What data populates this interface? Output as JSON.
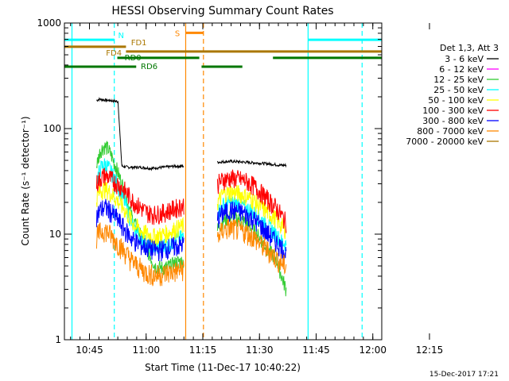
{
  "chart_data": {
    "type": "line",
    "title": "HESSI Observing Summary Count Rates",
    "xlabel": "Start Time (11-Dec-17 10:40:22)",
    "ylabel": "Count Rate (s⁻¹ detector⁻¹)",
    "yscale": "log",
    "ylim": [
      1,
      1000
    ],
    "xlim_minutes": [
      -2,
      82
    ],
    "x_ticks": [
      {
        "t": 4.63,
        "label": "10:45"
      },
      {
        "t": 19.63,
        "label": "11:00"
      },
      {
        "t": 34.63,
        "label": "11:15"
      },
      {
        "t": 49.63,
        "label": "11:30"
      },
      {
        "t": 64.63,
        "label": "11:45"
      },
      {
        "t": 79.63,
        "label": "12:00"
      },
      {
        "t": 94.63,
        "label": "12:15"
      }
    ],
    "y_ticks": [
      {
        "v": 1,
        "label": "1"
      },
      {
        "v": 10,
        "label": "10"
      },
      {
        "v": 100,
        "label": "100"
      },
      {
        "v": 1000,
        "label": "1000"
      }
    ],
    "legend_title": "Det 1,3, Att 3",
    "legend_placement": "right",
    "series": [
      {
        "name": "3 - 6 keV",
        "color": "#000000",
        "seg1": [
          [
            6.5,
            185
          ],
          [
            7.2,
            190
          ],
          [
            8,
            188
          ],
          [
            9,
            186
          ],
          [
            10,
            185
          ],
          [
            11,
            183
          ],
          [
            12.2,
            180
          ],
          [
            13.2,
            44
          ],
          [
            15,
            43
          ],
          [
            18,
            43
          ],
          [
            21,
            42
          ],
          [
            24,
            43
          ],
          [
            27,
            44
          ],
          [
            29.6,
            44
          ]
        ],
        "seg2": [
          [
            38.5,
            48
          ],
          [
            42,
            49
          ],
          [
            46,
            48
          ],
          [
            50,
            47
          ],
          [
            53,
            46
          ],
          [
            55,
            45
          ],
          [
            56.7,
            45
          ]
        ]
      },
      {
        "name": "6 - 12 keV",
        "color": "#ff00ff",
        "seg1": [],
        "seg2": []
      },
      {
        "name": "12 - 25 keV",
        "color": "#33cc33",
        "seg1": [
          [
            6.5,
            45
          ],
          [
            7.5,
            62
          ],
          [
            8.5,
            68
          ],
          [
            9.5,
            65
          ],
          [
            10.5,
            55
          ],
          [
            12,
            40
          ],
          [
            14,
            25
          ],
          [
            16,
            14
          ],
          [
            18,
            10
          ],
          [
            20,
            7
          ],
          [
            22,
            5
          ],
          [
            24,
            4.8
          ],
          [
            26,
            5
          ],
          [
            28,
            5.5
          ],
          [
            29.6,
            5.5
          ]
        ],
        "seg2": [
          [
            38.5,
            11
          ],
          [
            40,
            13.5
          ],
          [
            42,
            14.5
          ],
          [
            44,
            14
          ],
          [
            46,
            13
          ],
          [
            48,
            11
          ],
          [
            50,
            9
          ],
          [
            52,
            7
          ],
          [
            54,
            6
          ],
          [
            55.5,
            4
          ],
          [
            56.7,
            3
          ]
        ]
      },
      {
        "name": "25 - 50 keV",
        "color": "#00ffff",
        "seg1": [
          [
            6.5,
            32
          ],
          [
            7.5,
            42
          ],
          [
            8.5,
            46
          ],
          [
            9.5,
            44
          ],
          [
            10.5,
            38
          ],
          [
            12,
            30
          ],
          [
            14,
            20
          ],
          [
            16,
            12
          ],
          [
            18,
            9.5
          ],
          [
            20,
            8
          ],
          [
            22,
            7.5
          ],
          [
            24,
            7.8
          ],
          [
            26,
            8.2
          ],
          [
            28,
            9
          ],
          [
            29.6,
            9.5
          ]
        ],
        "seg2": [
          [
            38.5,
            16
          ],
          [
            40,
            19
          ],
          [
            42,
            20
          ],
          [
            44,
            19.5
          ],
          [
            46,
            18
          ],
          [
            48,
            16
          ],
          [
            50,
            14
          ],
          [
            52,
            12
          ],
          [
            54,
            10
          ],
          [
            55.5,
            8.5
          ],
          [
            56.7,
            8
          ]
        ]
      },
      {
        "name": "50 - 100 keV",
        "color": "#ffff00",
        "seg1": [
          [
            6.5,
            22
          ],
          [
            7.5,
            26
          ],
          [
            8.5,
            27
          ],
          [
            9.5,
            26
          ],
          [
            10.5,
            24
          ],
          [
            12,
            21
          ],
          [
            14,
            17
          ],
          [
            16,
            13
          ],
          [
            18,
            11
          ],
          [
            20,
            10
          ],
          [
            22,
            9.5
          ],
          [
            24,
            10
          ],
          [
            26,
            10.5
          ],
          [
            28,
            11.5
          ],
          [
            29.6,
            12
          ]
        ],
        "seg2": [
          [
            38.5,
            20
          ],
          [
            40,
            24
          ],
          [
            42,
            25
          ],
          [
            44,
            24.5
          ],
          [
            46,
            23
          ],
          [
            48,
            21
          ],
          [
            50,
            18
          ],
          [
            52,
            16
          ],
          [
            54,
            14
          ],
          [
            55.5,
            12
          ],
          [
            56.7,
            11
          ]
        ]
      },
      {
        "name": "100 - 300 keV",
        "color": "#ff0000",
        "seg1": [
          [
            6.5,
            30
          ],
          [
            7.5,
            34
          ],
          [
            8.5,
            36
          ],
          [
            9.5,
            35
          ],
          [
            10.5,
            33
          ],
          [
            12,
            30
          ],
          [
            14,
            26
          ],
          [
            16,
            21
          ],
          [
            18,
            18
          ],
          [
            20,
            16
          ],
          [
            22,
            15.5
          ],
          [
            24,
            16
          ],
          [
            26,
            17
          ],
          [
            28,
            18
          ],
          [
            29.6,
            19
          ]
        ],
        "seg2": [
          [
            38.5,
            30
          ],
          [
            40,
            33
          ],
          [
            42,
            34
          ],
          [
            44,
            33.5
          ],
          [
            46,
            32
          ],
          [
            48,
            29
          ],
          [
            50,
            25
          ],
          [
            52,
            21
          ],
          [
            54,
            18
          ],
          [
            55.5,
            15
          ],
          [
            56.7,
            13
          ]
        ]
      },
      {
        "name": "300 - 800 keV",
        "color": "#0000ff",
        "seg1": [
          [
            6.5,
            15
          ],
          [
            7.5,
            17
          ],
          [
            8.5,
            18
          ],
          [
            9.5,
            17.5
          ],
          [
            10.5,
            16
          ],
          [
            12,
            14
          ],
          [
            14,
            11
          ],
          [
            16,
            9
          ],
          [
            18,
            8
          ],
          [
            20,
            7.5
          ],
          [
            22,
            7
          ],
          [
            24,
            7.2
          ],
          [
            26,
            7.5
          ],
          [
            28,
            7.8
          ],
          [
            29.6,
            8
          ]
        ],
        "seg2": [
          [
            38.5,
            14
          ],
          [
            40,
            16
          ],
          [
            42,
            17
          ],
          [
            44,
            16.5
          ],
          [
            46,
            15.5
          ],
          [
            48,
            14
          ],
          [
            50,
            12
          ],
          [
            52,
            10
          ],
          [
            54,
            8.5
          ],
          [
            55.5,
            7.5
          ],
          [
            56.7,
            6.5
          ]
        ]
      },
      {
        "name": "800 - 7000 keV",
        "color": "#ff8800",
        "seg1": [
          [
            6.5,
            9.5
          ],
          [
            7.5,
            10.5
          ],
          [
            8.5,
            11
          ],
          [
            9.5,
            10.5
          ],
          [
            10.5,
            9.5
          ],
          [
            12,
            8.3
          ],
          [
            14,
            6.8
          ],
          [
            16,
            5.5
          ],
          [
            18,
            4.8
          ],
          [
            20,
            4.3
          ],
          [
            22,
            4.1
          ],
          [
            24,
            4.2
          ],
          [
            26,
            4.4
          ],
          [
            28,
            4.5
          ],
          [
            29.6,
            4.7
          ]
        ],
        "seg2": [
          [
            38.5,
            9.5
          ],
          [
            40,
            11
          ],
          [
            42,
            11.5
          ],
          [
            44,
            11
          ],
          [
            46,
            10.5
          ],
          [
            48,
            9.5
          ],
          [
            50,
            8
          ],
          [
            52,
            7
          ],
          [
            54,
            6
          ],
          [
            55.5,
            5.3
          ],
          [
            56.7,
            5
          ]
        ]
      },
      {
        "name": "7000 - 20000 keV",
        "color": "#aa7700",
        "seg1": [],
        "seg2": []
      }
    ],
    "flags": [
      {
        "label": "N",
        "color": "#00ffff",
        "y_frac": 0.053,
        "segments": [
          [
            -2,
            11.2
          ],
          [
            62.5,
            82
          ]
        ],
        "label_at": 11.8,
        "label_side": "right",
        "label_dy": -2
      },
      {
        "label": "FD1",
        "color": "#aa7700",
        "y_frac": 0.075,
        "segments": [
          [
            -2,
            14.3
          ]
        ],
        "label_at": 15.2,
        "label_side": "right",
        "label_dy": -2
      },
      {
        "label": "FD4",
        "color": "#aa7700",
        "y_frac": 0.09,
        "segments": [
          [
            14.3,
            82
          ]
        ],
        "label_at": 13.6,
        "label_side": "left",
        "label_dy": 5
      },
      {
        "label": "RD0",
        "color": "#007700",
        "y_frac": 0.11,
        "segments": [
          [
            12,
            33.7
          ],
          [
            53.2,
            82
          ]
        ],
        "label_at": 13.5,
        "label_side": "right",
        "label_dy": 3
      },
      {
        "label": "RD6",
        "color": "#007700",
        "y_frac": 0.138,
        "segments": [
          [
            -2,
            17
          ],
          [
            34.3,
            45.1
          ]
        ],
        "label_at": 17.8,
        "label_side": "right",
        "label_dy": 3
      },
      {
        "label": "S",
        "color": "#ff8800",
        "y_frac": 0.031,
        "segments": [
          [
            30.1,
            34.8
          ]
        ],
        "label_at": 29.0,
        "label_side": "left",
        "label_dy": 4
      }
    ],
    "vertical_markers": [
      {
        "t": 0.0,
        "color": "#00ffff",
        "style": "solid"
      },
      {
        "t": 11.2,
        "color": "#00ffff",
        "style": "dashed"
      },
      {
        "t": 30.1,
        "color": "#ff8800",
        "style": "solid"
      },
      {
        "t": 34.8,
        "color": "#ff8800",
        "style": "dashed"
      },
      {
        "t": 62.5,
        "color": "#00ffff",
        "style": "solid"
      },
      {
        "t": 76.8,
        "color": "#00ffff",
        "style": "dashed"
      }
    ],
    "footer_stamp": "15-Dec-2017 17:21"
  }
}
